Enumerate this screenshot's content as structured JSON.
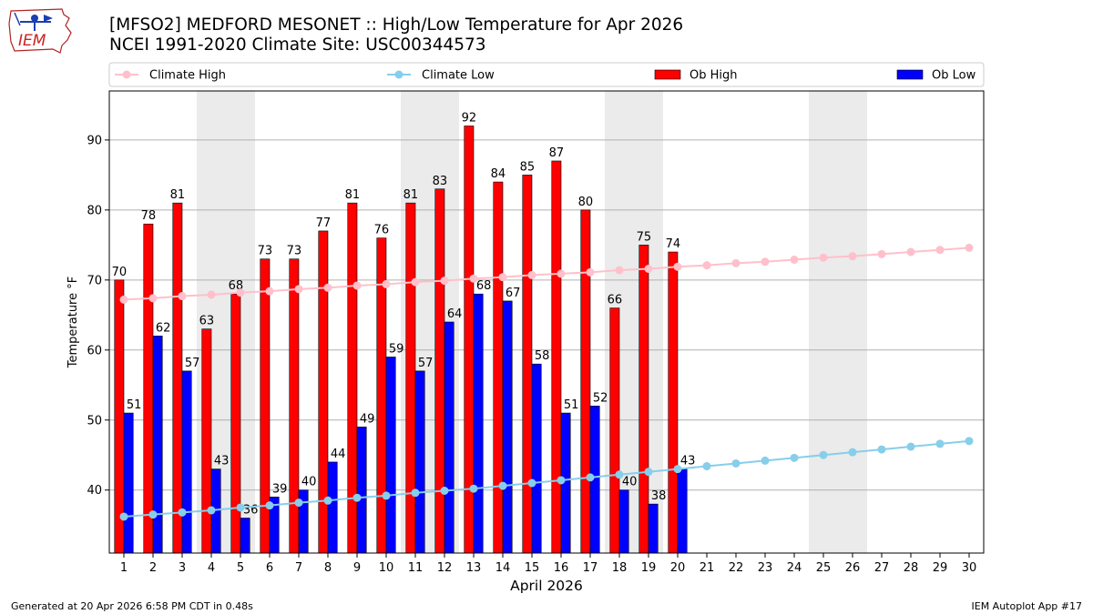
{
  "header": {
    "title_line1": "[MFSO2] MEDFORD MESONET :: High/Low Temperature for Apr 2026",
    "title_line2": "NCEI 1991-2020 Climate Site: USC00344573",
    "logo_text": "IEM"
  },
  "footer": {
    "generated": "Generated at 20 Apr 2026 6:58 PM CDT in 0.48s",
    "app": "IEM Autoplot App #17"
  },
  "colors": {
    "ob_high": "#ff0000",
    "ob_low": "#0000ff",
    "climate_high": "#ffc0cb",
    "climate_low": "#87ceeb",
    "weekend_shade": "#ebebeb",
    "grid": "#b0b0b0"
  },
  "chart_data": {
    "type": "bar",
    "xlabel": "April 2026",
    "ylabel": "Temperature °F",
    "ylim": [
      31,
      97
    ],
    "yticks": [
      40,
      50,
      60,
      70,
      80,
      90
    ],
    "grid": "horizontal",
    "legend_position": "top",
    "days": [
      1,
      2,
      3,
      4,
      5,
      6,
      7,
      8,
      9,
      10,
      11,
      12,
      13,
      14,
      15,
      16,
      17,
      18,
      19,
      20,
      21,
      22,
      23,
      24,
      25,
      26,
      27,
      28,
      29,
      30
    ],
    "weekend_spans": [
      [
        4,
        5
      ],
      [
        11,
        12
      ],
      [
        18,
        19
      ],
      [
        25,
        26
      ]
    ],
    "series": [
      {
        "name": "Climate High",
        "kind": "line",
        "values": [
          67.2,
          67.4,
          67.7,
          67.9,
          68.2,
          68.4,
          68.7,
          68.9,
          69.2,
          69.4,
          69.7,
          69.9,
          70.2,
          70.4,
          70.7,
          70.9,
          71.1,
          71.4,
          71.6,
          71.9,
          72.1,
          72.4,
          72.6,
          72.9,
          73.2,
          73.4,
          73.7,
          74.0,
          74.3,
          74.6
        ]
      },
      {
        "name": "Climate Low",
        "kind": "line",
        "values": [
          36.2,
          36.5,
          36.8,
          37.1,
          37.5,
          37.8,
          38.2,
          38.5,
          38.9,
          39.2,
          39.6,
          39.9,
          40.2,
          40.6,
          41.0,
          41.4,
          41.8,
          42.2,
          42.6,
          43.0,
          43.4,
          43.8,
          44.2,
          44.6,
          45.0,
          45.4,
          45.8,
          46.2,
          46.6,
          47.0
        ]
      },
      {
        "name": "Ob High",
        "kind": "bar",
        "values": [
          70,
          78,
          81,
          63,
          68,
          73,
          73,
          77,
          81,
          76,
          81,
          83,
          92,
          84,
          85,
          87,
          80,
          66,
          75,
          74
        ]
      },
      {
        "name": "Ob Low",
        "kind": "bar",
        "values": [
          51,
          62,
          57,
          43,
          36,
          39,
          40,
          44,
          49,
          59,
          57,
          64,
          68,
          67,
          58,
          51,
          52,
          40,
          38,
          43
        ]
      }
    ]
  }
}
